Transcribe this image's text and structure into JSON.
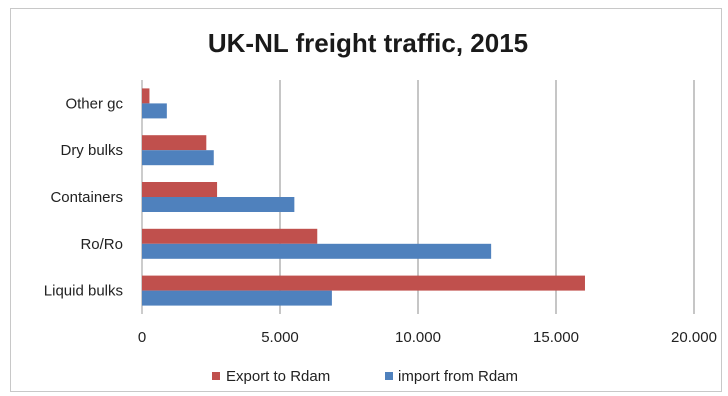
{
  "chart_data": {
    "type": "bar",
    "orientation": "horizontal",
    "title": "UK-NL freight traffic, 2015",
    "categories": [
      "Liquid bulks",
      "Ro/Ro",
      "Containers",
      "Dry bulks",
      "Other gc"
    ],
    "series": [
      {
        "name": "Export to Rdam",
        "color": "#c0504d",
        "values": [
          16050,
          6350,
          2720,
          2330,
          270
        ]
      },
      {
        "name": "import from Rdam",
        "color": "#4f81bd",
        "values": [
          6880,
          12650,
          5520,
          2600,
          900
        ]
      }
    ],
    "xlim": [
      0,
      20000
    ],
    "x_ticks": [
      0,
      5000,
      10000,
      15000,
      20000
    ],
    "x_tick_labels": [
      "0",
      "5.000",
      "10.000",
      "15.000",
      "20.000"
    ],
    "grid": "vertical",
    "legend_position": "bottom",
    "xlabel": "",
    "ylabel": ""
  }
}
